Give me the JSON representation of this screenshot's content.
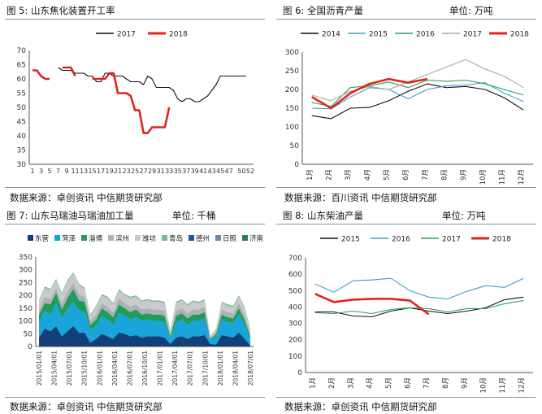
{
  "panels": [
    {
      "title": "图 5:   山东焦化装置开工率",
      "unit": "",
      "source": "数据来源：卓创资讯    中信期货研究部"
    },
    {
      "title": "图 6:   全国沥青产量",
      "unit": "单位:  万吨",
      "source": "数据来源：百川资讯    中信期货研究部"
    },
    {
      "title": "图 7:   山东马瑞油马瑞油加工量",
      "unit": "单位:  千桶",
      "source": "数据来源：卓创资讯    中信期货研究部"
    },
    {
      "title": "图 8:   山东柴油产量",
      "unit": "单位:  万吨",
      "source": "数据来源：卓创资讯    中信期货研究部"
    }
  ],
  "chart_data": [
    {
      "type": "line",
      "ylim": [
        30,
        70
      ],
      "yticks": [
        30,
        35,
        40,
        45,
        50,
        55,
        60,
        65,
        70
      ],
      "xticks": [
        "1",
        "3",
        "5",
        "7",
        "9",
        "11",
        "13",
        "15",
        "17",
        "19",
        "21",
        "23",
        "25",
        "27",
        "29",
        "31",
        "33",
        "35",
        "37",
        "39",
        "41",
        "43",
        "45",
        "47",
        "50",
        "52"
      ],
      "legend": [
        "2017",
        "2018"
      ],
      "colors": {
        "2017": "#111111",
        "2018": "#e3231c"
      },
      "series": [
        {
          "name": "2017",
          "x": [
            7,
            8,
            9,
            10,
            11,
            12,
            13,
            14,
            15,
            16,
            17,
            18,
            19,
            20,
            21,
            22,
            23,
            24,
            25,
            26,
            27,
            28,
            29,
            30,
            31,
            32,
            33,
            34,
            35,
            36,
            37,
            38,
            39,
            40,
            41,
            42,
            43,
            44,
            45,
            46,
            47,
            48,
            49,
            50,
            51
          ],
          "values": [
            64,
            63,
            63,
            63,
            62,
            62,
            62,
            61,
            61,
            59,
            59,
            62,
            62,
            61,
            61,
            61,
            60,
            59,
            59,
            59,
            58,
            61,
            60,
            57,
            57,
            57,
            57,
            56,
            53,
            52,
            53,
            53,
            52,
            52,
            53,
            54,
            56,
            58,
            61,
            61,
            61,
            61,
            61,
            61,
            61
          ]
        },
        {
          "name": "2018",
          "x": [
            1,
            2,
            3,
            4,
            5,
            6,
            7,
            8,
            9,
            10,
            11,
            12,
            13,
            14,
            15,
            16,
            17,
            18,
            19,
            20,
            21,
            22,
            23,
            24,
            25,
            26,
            27,
            28,
            29,
            30,
            31,
            32,
            33,
            34
          ],
          "values": [
            63,
            63,
            61,
            60,
            60,
            null,
            null,
            64,
            64,
            64,
            61,
            null,
            null,
            null,
            60,
            60,
            60,
            60,
            62,
            62,
            55,
            55,
            55,
            54,
            49,
            49,
            41,
            41,
            43,
            43,
            43,
            43,
            50,
            null
          ]
        }
      ]
    },
    {
      "type": "line",
      "ylim": [
        0,
        300
      ],
      "yticks": [
        0,
        50,
        100,
        150,
        200,
        250,
        300
      ],
      "categories": [
        "1月",
        "2月",
        "3月",
        "4月",
        "5月",
        "6月",
        "7月",
        "8月",
        "9月",
        "10月",
        "11月",
        "12月"
      ],
      "legend": [
        "2014",
        "2015",
        "2016",
        "2017",
        "2018"
      ],
      "colors": {
        "2014": "#111111",
        "2015": "#3aa0c9",
        "2016": "#2aa160",
        "2017": "#a8a8a8",
        "2018": "#e3231c"
      },
      "series": [
        {
          "name": "2014",
          "values": [
            130,
            122,
            150,
            152,
            170,
            195,
            215,
            205,
            208,
            200,
            178,
            145
          ]
        },
        {
          "name": "2015",
          "values": [
            150,
            148,
            180,
            205,
            200,
            175,
            200,
            210,
            212,
            218,
            190,
            168
          ]
        },
        {
          "name": "2016",
          "values": [
            165,
            155,
            205,
            210,
            220,
            205,
            225,
            222,
            225,
            215,
            200,
            185
          ]
        },
        {
          "name": "2017",
          "values": [
            185,
            170,
            195,
            208,
            200,
            220,
            240,
            260,
            280,
            255,
            235,
            205
          ]
        },
        {
          "name": "2018",
          "values": [
            180,
            150,
            190,
            215,
            228,
            218,
            228,
            null,
            null,
            null,
            null,
            null
          ]
        }
      ]
    },
    {
      "type": "area",
      "stacked": true,
      "ylim": [
        0,
        350
      ],
      "yticks": [
        0,
        50,
        100,
        150,
        200,
        250,
        300,
        350
      ],
      "xticks": [
        "2015/01/01",
        "2015/04/01",
        "2015/07/01",
        "2015/10/01",
        "2016/01/01",
        "2016/04/01",
        "2016/07/01",
        "2016/10/01",
        "2017/01/01",
        "2017/04/01",
        "2017/07/01",
        "2017/10/01",
        "2018/01/01",
        "2018/04/01",
        "2018/07/01"
      ],
      "legend": [
        "东营",
        "菏泽",
        "淄博",
        "滨州",
        "潍坊",
        "青岛",
        "德州",
        "日照",
        "济南"
      ],
      "colors": {
        "东营": "#14407a",
        "菏泽": "#19a4dc",
        "淄博": "#1e9c5c",
        "滨州": "#aeb0b3",
        "潍坊": "#c8cacd",
        "青岛": "#6fbf8a",
        "德州": "#1a5aa8",
        "日照": "#6e8aa8",
        "济南": "#2f7a63"
      },
      "series": [
        {
          "name": "东营",
          "values": [
            35,
            70,
            60,
            80,
            40,
            60,
            80,
            55,
            55,
            15,
            30,
            50,
            40,
            30,
            55,
            50,
            40,
            45,
            35,
            40,
            40,
            40,
            35,
            10,
            35,
            40,
            30,
            40,
            40,
            45,
            10,
            8,
            45,
            40,
            35,
            55,
            30,
            5
          ]
        },
        {
          "name": "菏泽",
          "values": [
            60,
            70,
            65,
            90,
            70,
            85,
            95,
            85,
            80,
            50,
            50,
            70,
            65,
            55,
            75,
            70,
            65,
            70,
            65,
            65,
            60,
            60,
            60,
            20,
            60,
            65,
            55,
            60,
            60,
            65,
            15,
            30,
            60,
            55,
            55,
            70,
            55,
            25
          ]
        },
        {
          "name": "淄博",
          "values": [
            30,
            30,
            40,
            40,
            35,
            45,
            50,
            40,
            40,
            20,
            25,
            30,
            30,
            30,
            35,
            30,
            30,
            30,
            25,
            25,
            25,
            25,
            25,
            10,
            25,
            25,
            25,
            25,
            25,
            25,
            5,
            10,
            20,
            20,
            20,
            25,
            20,
            10
          ]
        },
        {
          "name": "滨州",
          "values": [
            20,
            25,
            20,
            20,
            25,
            25,
            25,
            25,
            20,
            15,
            20,
            20,
            20,
            20,
            25,
            20,
            20,
            20,
            20,
            20,
            20,
            20,
            20,
            5,
            20,
            20,
            20,
            20,
            20,
            20,
            5,
            10,
            20,
            20,
            20,
            20,
            20,
            10
          ]
        },
        {
          "name": "潍坊",
          "values": [
            30,
            35,
            35,
            30,
            35,
            40,
            35,
            35,
            30,
            20,
            30,
            30,
            35,
            30,
            30,
            30,
            35,
            30,
            30,
            30,
            30,
            30,
            30,
            10,
            30,
            30,
            30,
            30,
            25,
            25,
            5,
            12,
            25,
            25,
            25,
            25,
            25,
            15
          ]
        },
        {
          "name": "青岛",
          "values": [
            5,
            5,
            5,
            5,
            5,
            5,
            5,
            5,
            5,
            5,
            5,
            5,
            5,
            5,
            5,
            5,
            5,
            5,
            5,
            5,
            5,
            5,
            5,
            5,
            5,
            5,
            5,
            5,
            5,
            5,
            0,
            0,
            5,
            5,
            5,
            5,
            5,
            5
          ]
        },
        {
          "name": "德州",
          "values": [
            0,
            0,
            0,
            0,
            0,
            0,
            0,
            0,
            0,
            0,
            0,
            0,
            0,
            0,
            0,
            0,
            0,
            0,
            0,
            0,
            0,
            0,
            0,
            0,
            0,
            0,
            0,
            0,
            0,
            0,
            0,
            0,
            0,
            0,
            0,
            0,
            0,
            0
          ]
        },
        {
          "name": "日照",
          "values": [
            0,
            0,
            0,
            0,
            0,
            0,
            0,
            0,
            0,
            0,
            0,
            0,
            0,
            0,
            0,
            0,
            0,
            0,
            0,
            0,
            0,
            0,
            0,
            0,
            0,
            0,
            0,
            0,
            0,
            0,
            0,
            0,
            0,
            0,
            0,
            0,
            0,
            0
          ]
        },
        {
          "name": "济南",
          "values": [
            0,
            0,
            0,
            0,
            0,
            0,
            0,
            0,
            0,
            0,
            0,
            0,
            0,
            0,
            0,
            0,
            0,
            0,
            0,
            0,
            0,
            0,
            0,
            0,
            0,
            0,
            0,
            0,
            0,
            0,
            0,
            0,
            0,
            0,
            0,
            0,
            0,
            0
          ]
        }
      ]
    },
    {
      "type": "line",
      "ylim": [
        0,
        700
      ],
      "yticks": [
        0,
        100,
        200,
        300,
        400,
        500,
        600,
        700
      ],
      "categories": [
        "1月",
        "2月",
        "3月",
        "4月",
        "5月",
        "6月",
        "7月",
        "8月",
        "9月",
        "10月",
        "11月",
        "12月"
      ],
      "legend": [
        "2015",
        "2016",
        "2017",
        "2018"
      ],
      "colors": {
        "2015": "#111111",
        "2016": "#3aa0c9",
        "2017": "#2aa160",
        "2018": "#e3231c"
      },
      "series": [
        {
          "name": "2015",
          "values": [
            370,
            370,
            345,
            340,
            375,
            395,
            375,
            360,
            375,
            395,
            445,
            460
          ]
        },
        {
          "name": "2016",
          "values": [
            540,
            490,
            560,
            565,
            575,
            500,
            460,
            450,
            495,
            530,
            520,
            575
          ]
        },
        {
          "name": "2017",
          "values": [
            365,
            360,
            375,
            360,
            385,
            395,
            390,
            370,
            390,
            390,
            420,
            440
          ]
        },
        {
          "name": "2018",
          "values": [
            480,
            430,
            445,
            450,
            450,
            440,
            355,
            null,
            null,
            null,
            null,
            null
          ]
        }
      ]
    }
  ]
}
